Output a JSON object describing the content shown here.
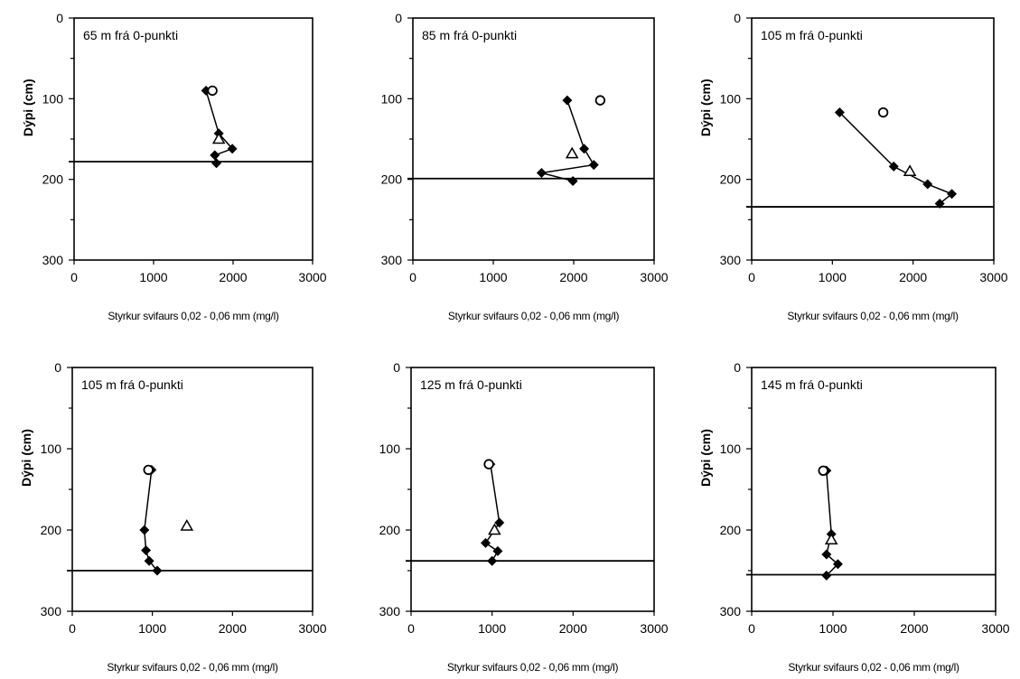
{
  "chart_data": [
    {
      "type": "scatter",
      "title": "65 m frá 0-punkti",
      "xlabel": "Styrkur svifaurs 0,02 - 0,06 mm (mg/l)",
      "ylabel": "Dýpi (cm)",
      "xlim": [
        0,
        3000
      ],
      "ylim": [
        0,
        300
      ],
      "y_inverted": true,
      "xticks": [
        "0",
        "1000",
        "2000",
        "3000"
      ],
      "yticks": [
        "0",
        "100",
        "200",
        "300"
      ],
      "reference_line_y": 178,
      "series": [
        {
          "marker": "diamond",
          "connected": true,
          "points": [
            [
              1660,
              90
            ],
            [
              1820,
              143
            ],
            [
              1990,
              162
            ],
            [
              1770,
              170
            ],
            [
              1790,
              180
            ]
          ]
        },
        {
          "marker": "circle",
          "connected": false,
          "points": [
            [
              1740,
              90
            ]
          ]
        },
        {
          "marker": "triangle",
          "connected": false,
          "points": [
            [
              1820,
              150
            ]
          ]
        }
      ]
    },
    {
      "type": "scatter",
      "title": "85 m frá 0-punkti",
      "xlabel": "Styrkur svifaurs 0,02 - 0,06 mm (mg/l)",
      "ylabel": "",
      "xlim": [
        0,
        3000
      ],
      "ylim": [
        0,
        300
      ],
      "y_inverted": true,
      "xticks": [
        "0",
        "1000",
        "2000",
        "3000"
      ],
      "yticks": [
        "0",
        "100",
        "200",
        "300"
      ],
      "reference_line_y": 199,
      "series": [
        {
          "marker": "diamond",
          "connected": true,
          "points": [
            [
              1920,
              102
            ],
            [
              2130,
              162
            ],
            [
              2250,
              182
            ],
            [
              1600,
              192
            ],
            [
              1990,
              202
            ]
          ]
        },
        {
          "marker": "circle",
          "connected": false,
          "points": [
            [
              2330,
              102
            ]
          ]
        },
        {
          "marker": "triangle",
          "connected": false,
          "points": [
            [
              1980,
              168
            ]
          ]
        }
      ]
    },
    {
      "type": "scatter",
      "title": "105 m frá 0-punkti",
      "xlabel": "Styrkur svifaurs 0,02 - 0,06 mm (mg/l)",
      "ylabel": "Dýpi (cm)",
      "xlim": [
        0,
        3000
      ],
      "ylim": [
        0,
        300
      ],
      "y_inverted": true,
      "xticks": [
        "0",
        "1000",
        "2000",
        "3000"
      ],
      "yticks": [
        "0",
        "100",
        "200",
        "300"
      ],
      "reference_line_y": 234,
      "series": [
        {
          "marker": "diamond",
          "connected": true,
          "points": [
            [
              1090,
              117
            ],
            [
              1760,
              184
            ],
            [
              2180,
              206
            ],
            [
              2480,
              218
            ],
            [
              2330,
              230
            ]
          ]
        },
        {
          "marker": "circle",
          "connected": false,
          "points": [
            [
              1630,
              117
            ]
          ]
        },
        {
          "marker": "triangle",
          "connected": false,
          "points": [
            [
              1960,
              190
            ]
          ]
        }
      ]
    },
    {
      "type": "scatter",
      "title": "105 m frá 0-punkti",
      "xlabel": "Styrkur svifaurs 0,02 - 0,06 mm (mg/l)",
      "ylabel": "Dýpi (cm)",
      "xlim": [
        0,
        3000
      ],
      "ylim": [
        0,
        300
      ],
      "y_inverted": true,
      "xticks": [
        "0",
        "1000",
        "2000",
        "3000"
      ],
      "yticks": [
        "0",
        "100",
        "200",
        "300"
      ],
      "reference_line_y": 250,
      "series": [
        {
          "marker": "diamond",
          "connected": true,
          "points": [
            [
              990,
              126
            ],
            [
              900,
              200
            ],
            [
              920,
              225
            ],
            [
              960,
              238
            ],
            [
              1060,
              250
            ]
          ]
        },
        {
          "marker": "circle",
          "connected": false,
          "points": [
            [
              950,
              126
            ]
          ]
        },
        {
          "marker": "triangle",
          "connected": false,
          "points": [
            [
              1430,
              195
            ]
          ]
        }
      ]
    },
    {
      "type": "scatter",
      "title": "125 m frá 0-punkti",
      "xlabel": "Styrkur svifaurs 0,02 - 0,06 mm (mg/l)",
      "ylabel": "",
      "xlim": [
        0,
        3000
      ],
      "ylim": [
        0,
        300
      ],
      "y_inverted": true,
      "xticks": [
        "0",
        "1000",
        "2000",
        "3000"
      ],
      "yticks": [
        "0",
        "100",
        "200",
        "300"
      ],
      "reference_line_y": 238,
      "series": [
        {
          "marker": "diamond",
          "connected": true,
          "points": [
            [
              980,
              119
            ],
            [
              1090,
              191
            ],
            [
              920,
              216
            ],
            [
              1070,
              226
            ],
            [
              1000,
              238
            ]
          ]
        },
        {
          "marker": "circle",
          "connected": false,
          "points": [
            [
              960,
              119
            ]
          ]
        },
        {
          "marker": "triangle",
          "connected": false,
          "points": [
            [
              1030,
              200
            ]
          ]
        }
      ]
    },
    {
      "type": "scatter",
      "title": "145 m frá 0-punkti",
      "xlabel": "Styrkur svifaurs 0,02 - 0,06 mm (mg/l)",
      "ylabel": "Dýpi (cm)",
      "xlim": [
        0,
        3000
      ],
      "ylim": [
        0,
        300
      ],
      "y_inverted": true,
      "xticks": [
        "0",
        "1000",
        "2000",
        "3000"
      ],
      "yticks": [
        "0",
        "100",
        "200",
        "300"
      ],
      "reference_line_y": 255,
      "series": [
        {
          "marker": "diamond",
          "connected": true,
          "points": [
            [
              920,
              127
            ],
            [
              980,
              205
            ],
            [
              920,
              230
            ],
            [
              1060,
              242
            ],
            [
              920,
              256
            ]
          ]
        },
        {
          "marker": "circle",
          "connected": false,
          "points": [
            [
              880,
              127
            ]
          ]
        },
        {
          "marker": "triangle",
          "connected": false,
          "points": [
            [
              980,
              212
            ]
          ]
        }
      ]
    }
  ]
}
